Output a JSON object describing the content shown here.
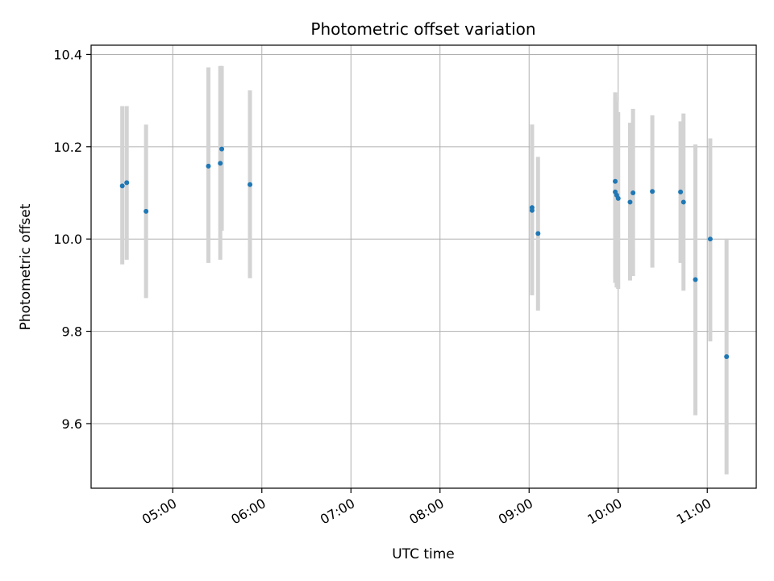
{
  "chart_data": {
    "type": "scatter",
    "title": "Photometric offset variation",
    "xlabel": "UTC time",
    "ylabel": "Photometric offset",
    "x_tick_labels": [
      "05:00",
      "06:00",
      "07:00",
      "08:00",
      "09:00",
      "10:00",
      "11:00"
    ],
    "x_tick_values": [
      "05:00",
      "06:00",
      "07:00",
      "08:00",
      "09:00",
      "10:00",
      "11:00"
    ],
    "y_tick_labels": [
      "9.6",
      "9.8",
      "10.0",
      "10.2",
      "10.4"
    ],
    "y_tick_values": [
      9.6,
      9.8,
      10.0,
      10.2,
      10.4
    ],
    "xlim": [
      "04:05",
      "11:33"
    ],
    "ylim": [
      9.46,
      10.42
    ],
    "grid": true,
    "colors": {
      "point": "#1f77b4",
      "errorbar": "#d3d3d3",
      "grid": "#b0b0b0"
    },
    "points": [
      {
        "x": "04:26",
        "y": 10.115,
        "ylow": 9.945,
        "yhigh": 10.288
      },
      {
        "x": "04:29",
        "y": 10.122,
        "ylow": 9.955,
        "yhigh": 10.288
      },
      {
        "x": "04:42",
        "y": 10.06,
        "ylow": 9.872,
        "yhigh": 10.248
      },
      {
        "x": "05:24",
        "y": 10.158,
        "ylow": 9.948,
        "yhigh": 10.372
      },
      {
        "x": "05:32",
        "y": 10.164,
        "ylow": 9.955,
        "yhigh": 10.375
      },
      {
        "x": "05:33",
        "y": 10.195,
        "ylow": 10.018,
        "yhigh": 10.375
      },
      {
        "x": "05:52",
        "y": 10.118,
        "ylow": 9.915,
        "yhigh": 10.322
      },
      {
        "x": "09:02",
        "y": 10.068,
        "ylow": 9.878,
        "yhigh": 10.248
      },
      {
        "x": "09:02",
        "y": 10.062,
        "ylow": 9.885,
        "yhigh": 10.248
      },
      {
        "x": "09:06",
        "y": 10.012,
        "ylow": 9.845,
        "yhigh": 10.178
      },
      {
        "x": "09:58",
        "y": 10.125,
        "ylow": 9.915,
        "yhigh": 10.318
      },
      {
        "x": "09:58",
        "y": 10.102,
        "ylow": 9.905,
        "yhigh": 10.308
      },
      {
        "x": "09:59",
        "y": 10.095,
        "ylow": 9.895,
        "yhigh": 10.298
      },
      {
        "x": "10:00",
        "y": 10.088,
        "ylow": 9.892,
        "yhigh": 10.275
      },
      {
        "x": "10:08",
        "y": 10.08,
        "ylow": 9.91,
        "yhigh": 10.252
      },
      {
        "x": "10:10",
        "y": 10.1,
        "ylow": 9.92,
        "yhigh": 10.282
      },
      {
        "x": "10:23",
        "y": 10.103,
        "ylow": 9.938,
        "yhigh": 10.268
      },
      {
        "x": "10:42",
        "y": 10.102,
        "ylow": 9.948,
        "yhigh": 10.255
      },
      {
        "x": "10:44",
        "y": 10.08,
        "ylow": 9.888,
        "yhigh": 10.272
      },
      {
        "x": "10:52",
        "y": 9.912,
        "ylow": 9.618,
        "yhigh": 10.205
      },
      {
        "x": "11:02",
        "y": 10.0,
        "ylow": 9.778,
        "yhigh": 10.218
      },
      {
        "x": "11:13",
        "y": 9.745,
        "ylow": 9.49,
        "yhigh": 10.0
      }
    ]
  }
}
